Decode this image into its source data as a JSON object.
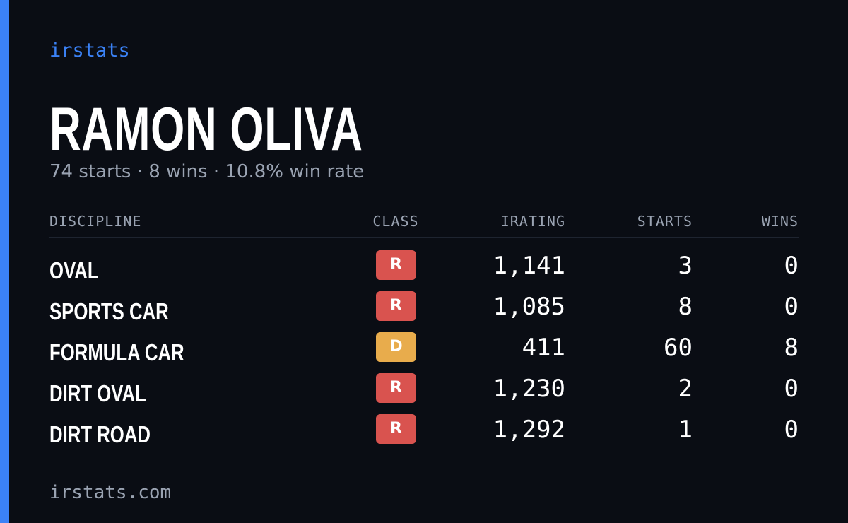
{
  "brand": "irstats",
  "name": "RAMON OLIVA",
  "summary": "74 starts · 8 wins · 10.8% win rate",
  "table": {
    "headers": [
      "DISCIPLINE",
      "CLASS",
      "IRATING",
      "STARTS",
      "WINS"
    ],
    "rows": [
      [
        "OVAL",
        "R",
        "1,141",
        3,
        0
      ],
      [
        "SPORTS CAR",
        "R",
        "1,085",
        8,
        0
      ],
      [
        "FORMULA CAR",
        "D",
        "411",
        60,
        8
      ],
      [
        "DIRT OVAL",
        "R",
        "1,230",
        2,
        0
      ],
      [
        "DIRT ROAD",
        "R",
        "1,292",
        1,
        0
      ]
    ]
  },
  "footer": "irstats.com"
}
